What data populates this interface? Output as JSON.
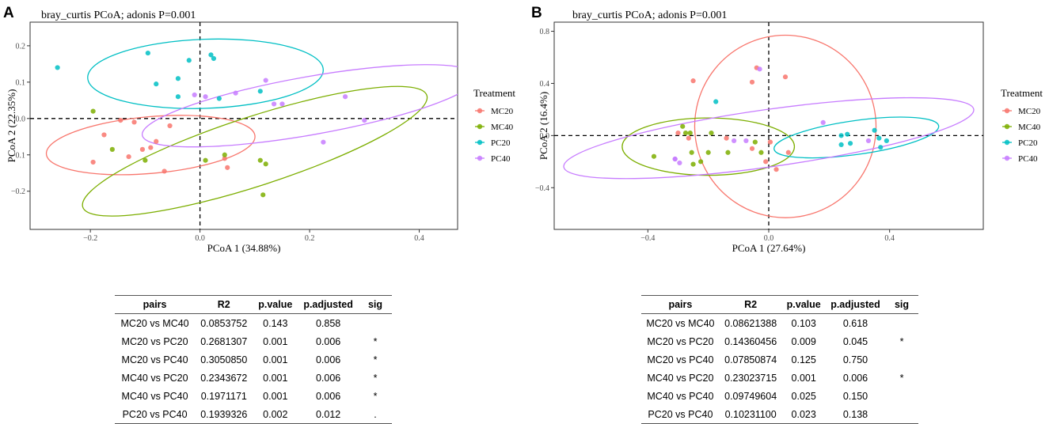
{
  "colors": {
    "MC20": "#F8766D",
    "MC40": "#7CAE00",
    "PC20": "#00BFC4",
    "PC40": "#C77CFF"
  },
  "legend": {
    "title": "Treatment",
    "groups": [
      "MC20",
      "MC40",
      "PC20",
      "PC40"
    ]
  },
  "chart_data": [
    {
      "type": "scatter",
      "panel": "A",
      "title": "bray_curtis PCoA; adonis P=0.001",
      "xlabel": "PCoA 1 (34.88%)",
      "ylabel": "PCoA 2 (22.35%)",
      "xlim": [
        -0.31,
        0.47
      ],
      "ylim": [
        -0.305,
        0.265
      ],
      "xticks": [
        -0.2,
        0.0,
        0.2,
        0.4
      ],
      "xtick_labels": [
        "−0.2",
        "0.0",
        "0.2",
        "0.4"
      ],
      "yticks": [
        -0.2,
        -0.1,
        0.0,
        0.1,
        0.2
      ],
      "ytick_labels": [
        "−0.2",
        "−0.1",
        "0.0",
        "0.1",
        "0.2"
      ],
      "series": [
        {
          "name": "MC20",
          "points": [
            [
              -0.195,
              -0.12
            ],
            [
              -0.175,
              -0.045
            ],
            [
              -0.145,
              -0.005
            ],
            [
              -0.12,
              -0.01
            ],
            [
              -0.13,
              -0.105
            ],
            [
              -0.105,
              -0.085
            ],
            [
              -0.09,
              -0.08
            ],
            [
              -0.08,
              -0.063
            ],
            [
              -0.065,
              -0.145
            ],
            [
              -0.055,
              -0.02
            ],
            [
              0.045,
              -0.11
            ],
            [
              0.05,
              -0.135
            ]
          ]
        },
        {
          "name": "MC40",
          "points": [
            [
              -0.195,
              0.02
            ],
            [
              -0.16,
              -0.085
            ],
            [
              -0.1,
              -0.115
            ],
            [
              0.01,
              -0.115
            ],
            [
              0.045,
              -0.1
            ],
            [
              0.11,
              -0.115
            ],
            [
              0.12,
              -0.125
            ],
            [
              0.115,
              -0.21
            ]
          ]
        },
        {
          "name": "PC20",
          "points": [
            [
              -0.26,
              0.14
            ],
            [
              -0.095,
              0.18
            ],
            [
              -0.08,
              0.095
            ],
            [
              -0.04,
              0.11
            ],
            [
              -0.04,
              0.06
            ],
            [
              -0.02,
              0.16
            ],
            [
              0.02,
              0.175
            ],
            [
              0.025,
              0.165
            ],
            [
              0.035,
              0.055
            ],
            [
              0.11,
              0.075
            ]
          ]
        },
        {
          "name": "PC40",
          "points": [
            [
              -0.01,
              0.065
            ],
            [
              0.01,
              0.06
            ],
            [
              0.065,
              0.07
            ],
            [
              0.12,
              0.105
            ],
            [
              0.135,
              0.04
            ],
            [
              0.15,
              0.04
            ],
            [
              0.225,
              -0.065
            ],
            [
              0.265,
              0.06
            ],
            [
              0.3,
              -0.005
            ]
          ]
        }
      ],
      "ellipses": [
        {
          "name": "MC20",
          "center": [
            -0.09,
            -0.073
          ],
          "semi_axes": [
            0.191,
            0.078
          ],
          "angle_deg": -5
        },
        {
          "name": "MC40",
          "center": [
            0.1,
            -0.09
          ],
          "semi_axes": [
            0.33,
            0.095
          ],
          "angle_deg": -18
        },
        {
          "name": "PC20",
          "center": [
            0.01,
            0.123
          ],
          "semi_axes": [
            0.215,
            0.095
          ],
          "angle_deg": -2
        },
        {
          "name": "PC40",
          "center": [
            0.2,
            0.035
          ],
          "semi_axes": [
            0.31,
            0.08
          ],
          "angle_deg": -10
        }
      ]
    },
    {
      "type": "scatter",
      "panel": "B",
      "title": "bray_curtis PCoA; adonis P=0.001",
      "xlabel": "PCoA 1 (27.64%)",
      "ylabel": "PCoA 2 (16.4%)",
      "xlim": [
        -0.71,
        0.71
      ],
      "ylim": [
        -0.72,
        0.87
      ],
      "xticks": [
        -0.4,
        0.0,
        0.4
      ],
      "xtick_labels": [
        "−0.4",
        "0.0",
        "0.4"
      ],
      "yticks": [
        -0.4,
        0.0,
        0.4,
        0.8
      ],
      "ytick_labels": [
        "−0.4",
        "0.0",
        "0.4",
        "0.8"
      ],
      "series": [
        {
          "name": "MC20",
          "points": [
            [
              -0.25,
              0.42
            ],
            [
              -0.3,
              0.02
            ],
            [
              -0.265,
              -0.02
            ],
            [
              -0.14,
              -0.02
            ],
            [
              -0.055,
              0.41
            ],
            [
              -0.04,
              0.52
            ],
            [
              -0.055,
              -0.1
            ],
            [
              -0.01,
              -0.2
            ],
            [
              0.005,
              -0.05
            ],
            [
              0.025,
              -0.26
            ],
            [
              0.055,
              0.45
            ],
            [
              0.065,
              -0.13
            ]
          ]
        },
        {
          "name": "MC40",
          "points": [
            [
              -0.38,
              -0.16
            ],
            [
              -0.285,
              0.07
            ],
            [
              -0.275,
              0.02
            ],
            [
              -0.26,
              0.02
            ],
            [
              -0.255,
              -0.13
            ],
            [
              -0.25,
              -0.22
            ],
            [
              -0.225,
              -0.2
            ],
            [
              -0.2,
              -0.13
            ],
            [
              -0.19,
              0.02
            ],
            [
              -0.135,
              -0.13
            ],
            [
              -0.045,
              -0.05
            ],
            [
              -0.025,
              -0.13
            ]
          ]
        },
        {
          "name": "PC20",
          "points": [
            [
              -0.175,
              0.26
            ],
            [
              0.24,
              0.0
            ],
            [
              0.24,
              -0.07
            ],
            [
              0.26,
              0.01
            ],
            [
              0.27,
              -0.06
            ],
            [
              0.35,
              0.04
            ],
            [
              0.365,
              -0.02
            ],
            [
              0.37,
              -0.09
            ],
            [
              0.39,
              -0.04
            ]
          ]
        },
        {
          "name": "PC40",
          "points": [
            [
              -0.31,
              -0.18
            ],
            [
              -0.31,
              -0.18
            ],
            [
              -0.295,
              -0.21
            ],
            [
              -0.115,
              -0.04
            ],
            [
              -0.075,
              -0.04
            ],
            [
              -0.03,
              0.51
            ],
            [
              0.18,
              0.1
            ],
            [
              0.33,
              -0.04
            ]
          ]
        }
      ],
      "ellipses": [
        {
          "name": "MC20",
          "center": [
            0.055,
            0.07
          ],
          "semi_axes": [
            0.3,
            0.7
          ],
          "angle_deg": -6
        },
        {
          "name": "MC40",
          "center": [
            -0.2,
            -0.085
          ],
          "semi_axes": [
            0.285,
            0.22
          ],
          "angle_deg": 0
        },
        {
          "name": "PC20",
          "center": [
            0.29,
            -0.015
          ],
          "semi_axes": [
            0.275,
            0.13
          ],
          "angle_deg": -8
        },
        {
          "name": "PC40",
          "center": [
            0.0,
            -0.02
          ],
          "semi_axes": [
            0.685,
            0.22
          ],
          "angle_deg": -8
        }
      ]
    }
  ],
  "tables": [
    {
      "id": "A",
      "headers": [
        "pairs",
        "R2",
        "p.value",
        "p.adjusted",
        "sig"
      ],
      "rows": [
        [
          "MC20 vs MC40",
          "0.0853752",
          "0.143",
          "0.858",
          ""
        ],
        [
          "MC20 vs PC20",
          "0.2681307",
          "0.001",
          "0.006",
          "*"
        ],
        [
          "MC20 vs PC40",
          "0.3050850",
          "0.001",
          "0.006",
          "*"
        ],
        [
          "MC40 vs PC20",
          "0.2343672",
          "0.001",
          "0.006",
          "*"
        ],
        [
          "MC40 vs PC40",
          "0.1971171",
          "0.001",
          "0.006",
          "*"
        ],
        [
          "PC20 vs PC40",
          "0.1939326",
          "0.002",
          "0.012",
          "."
        ]
      ]
    },
    {
      "id": "B",
      "headers": [
        "pairs",
        "R2",
        "p.value",
        "p.adjusted",
        "sig"
      ],
      "rows": [
        [
          "MC20 vs MC40",
          "0.08621388",
          "0.103",
          "0.618",
          ""
        ],
        [
          "MC20 vs PC20",
          "0.14360456",
          "0.009",
          "0.045",
          "*"
        ],
        [
          "MC20 vs PC40",
          "0.07850874",
          "0.125",
          "0.750",
          ""
        ],
        [
          "MC40 vs PC20",
          "0.23023715",
          "0.001",
          "0.006",
          "*"
        ],
        [
          "MC40 vs PC40",
          "0.09749604",
          "0.025",
          "0.150",
          ""
        ],
        [
          "PC20 vs PC40",
          "0.10231100",
          "0.023",
          "0.138",
          ""
        ]
      ]
    }
  ]
}
